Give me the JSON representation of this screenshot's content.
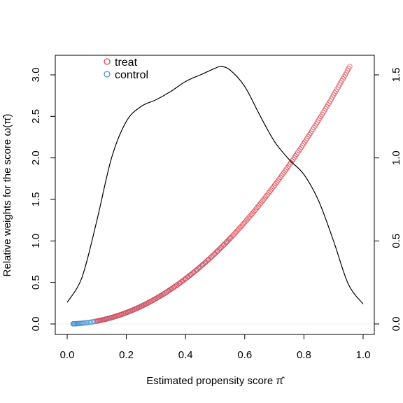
{
  "chart_data": {
    "type": "scatter",
    "title": "",
    "xlabel": "Estimated propensity score π̂",
    "ylabel": "Relative weights for the score ω(π̂)",
    "xlim": [
      0.0,
      1.0
    ],
    "ylim": [
      0.0,
      3.1
    ],
    "y2lim": [
      0.0,
      1.5
    ],
    "x_ticks": [
      "0.0",
      "0.2",
      "0.4",
      "0.6",
      "0.8",
      "1.0"
    ],
    "y_ticks": [
      "0.0",
      "0.5",
      "1.0",
      "1.5",
      "2.0",
      "2.5",
      "3.0"
    ],
    "y2_ticks": [
      "0.0",
      "0.5",
      "1.0",
      "1.5"
    ],
    "grid": false,
    "legend_position": "top-left",
    "weight_curve": "y = 3.4 * x^2",
    "colors": {
      "treat": "#e0454f",
      "control": "#4a90d0",
      "density": "#000000"
    },
    "legend": [
      {
        "label": "treat",
        "color": "#e0454f"
      },
      {
        "label": "control",
        "color": "#4a90d0"
      }
    ],
    "series": [
      {
        "name": "treat",
        "type": "scatter",
        "x_range": [
          0.1,
          0.955
        ]
      },
      {
        "name": "control",
        "type": "scatter",
        "x_range": [
          0.02,
          0.55
        ]
      },
      {
        "name": "density",
        "type": "line",
        "axis": "right",
        "x": [
          0.0,
          0.05,
          0.1,
          0.15,
          0.2,
          0.25,
          0.3,
          0.35,
          0.4,
          0.45,
          0.5,
          0.52,
          0.55,
          0.6,
          0.65,
          0.7,
          0.75,
          0.8,
          0.85,
          0.9,
          0.95,
          1.0
        ],
        "y": [
          0.13,
          0.28,
          0.62,
          1.0,
          1.22,
          1.31,
          1.35,
          1.4,
          1.46,
          1.5,
          1.54,
          1.55,
          1.53,
          1.43,
          1.26,
          1.1,
          0.99,
          0.9,
          0.74,
          0.5,
          0.24,
          0.12
        ]
      }
    ]
  }
}
